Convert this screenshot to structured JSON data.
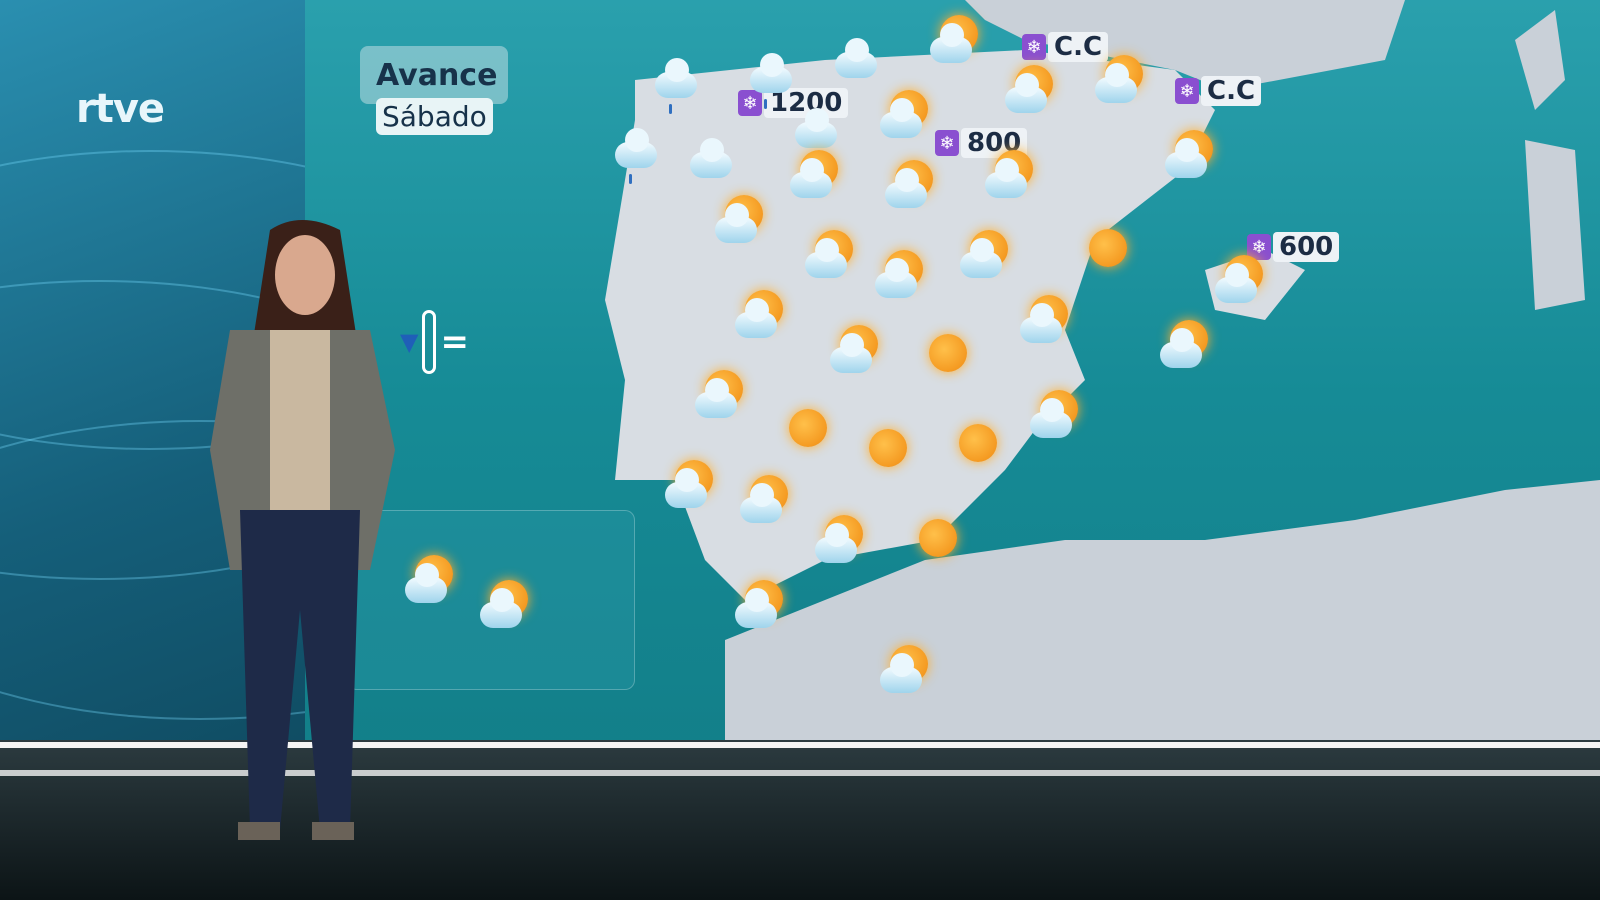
{
  "broadcaster": {
    "logo": "rtve"
  },
  "forecast": {
    "title": "Avance",
    "day": "Sábado"
  },
  "temperature_trend": {
    "icon": "thermometer-icon",
    "symbols": [
      "▼",
      "="
    ]
  },
  "snow_levels": [
    {
      "icon": "snowflake-icon",
      "value": "1200"
    },
    {
      "icon": "snowflake-icon",
      "value": "800"
    },
    {
      "icon": "snowflake-icon",
      "value": "C.C"
    },
    {
      "icon": "snowflake-icon",
      "value": "C.C"
    },
    {
      "icon": "snowflake-icon",
      "value": "600"
    }
  ],
  "weather_icons": [
    "cloud-rain",
    "cloud-rain",
    "cloud",
    "sun-cloud",
    "cloud-rain",
    "cloud",
    "cloud",
    "sun-cloud",
    "sun-cloud",
    "sun-cloud",
    "sun-cloud",
    "sun-cloud",
    "sun-cloud",
    "sun-cloud",
    "sun-cloud",
    "sun-cloud",
    "sun",
    "sun-cloud",
    "sun-cloud",
    "sun-cloud",
    "sun-cloud",
    "sun-cloud",
    "sun-cloud",
    "sun",
    "sun",
    "sun",
    "sun",
    "sun-cloud",
    "sun-cloud",
    "sun-cloud",
    "sun",
    "sun-cloud",
    "sun-cloud",
    "sun-cloud",
    "sun-cloud",
    "sun-cloud",
    "sun-cloud",
    "sun-cloud"
  ],
  "colors": {
    "sea": "#168b96",
    "land": "#d8dde3",
    "sun": "#f5a623",
    "snow_badge": "#8a4fd0"
  }
}
